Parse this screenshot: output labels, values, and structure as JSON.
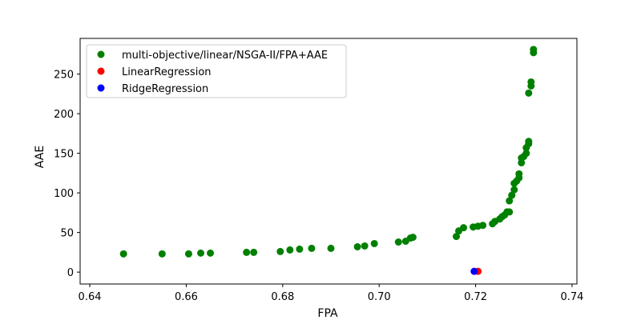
{
  "chart_data": {
    "type": "scatter",
    "title": "",
    "xlabel": "FPA",
    "ylabel": "AAE",
    "xlim": [
      0.638,
      0.741
    ],
    "ylim": [
      -15,
      295
    ],
    "xticks": [
      0.64,
      0.66,
      0.68,
      0.7,
      0.72,
      0.74
    ],
    "xtick_labels": [
      "0.64",
      "0.66",
      "0.68",
      "0.70",
      "0.72",
      "0.74"
    ],
    "yticks": [
      0,
      50,
      100,
      150,
      200,
      250
    ],
    "ytick_labels": [
      "0",
      "50",
      "100",
      "150",
      "200",
      "250"
    ],
    "grid": false,
    "legend_position": "top-left",
    "series": [
      {
        "name": "multi-objective/linear/NSGA-II/FPA+AAE",
        "color": "#008000",
        "points": [
          [
            0.647,
            23
          ],
          [
            0.655,
            23
          ],
          [
            0.6605,
            23
          ],
          [
            0.663,
            24
          ],
          [
            0.665,
            24
          ],
          [
            0.6725,
            25
          ],
          [
            0.674,
            25
          ],
          [
            0.6795,
            26
          ],
          [
            0.6815,
            28
          ],
          [
            0.6835,
            29
          ],
          [
            0.686,
            30
          ],
          [
            0.69,
            30
          ],
          [
            0.6955,
            32
          ],
          [
            0.697,
            33
          ],
          [
            0.699,
            36
          ],
          [
            0.704,
            38
          ],
          [
            0.7055,
            39
          ],
          [
            0.7065,
            43
          ],
          [
            0.707,
            44
          ],
          [
            0.716,
            45
          ],
          [
            0.7165,
            52
          ],
          [
            0.7175,
            56
          ],
          [
            0.7195,
            57
          ],
          [
            0.7205,
            58
          ],
          [
            0.7215,
            59
          ],
          [
            0.7235,
            61
          ],
          [
            0.724,
            64
          ],
          [
            0.725,
            67
          ],
          [
            0.7255,
            70
          ],
          [
            0.726,
            72
          ],
          [
            0.7265,
            76
          ],
          [
            0.727,
            76
          ],
          [
            0.727,
            90
          ],
          [
            0.7275,
            97
          ],
          [
            0.728,
            104
          ],
          [
            0.728,
            112
          ],
          [
            0.7285,
            115
          ],
          [
            0.729,
            119
          ],
          [
            0.729,
            124
          ],
          [
            0.7295,
            138
          ],
          [
            0.7295,
            144
          ],
          [
            0.73,
            146
          ],
          [
            0.7305,
            150
          ],
          [
            0.7305,
            157
          ],
          [
            0.731,
            162
          ],
          [
            0.731,
            165
          ],
          [
            0.731,
            226
          ],
          [
            0.7315,
            235
          ],
          [
            0.7315,
            240
          ],
          [
            0.732,
            277
          ],
          [
            0.732,
            281
          ]
        ]
      },
      {
        "name": "LinearRegression",
        "color": "#ff0000",
        "points": [
          [
            0.7205,
            1
          ]
        ]
      },
      {
        "name": "RidgeRegression",
        "color": "#0000ff",
        "points": [
          [
            0.7197,
            1
          ]
        ]
      }
    ]
  }
}
